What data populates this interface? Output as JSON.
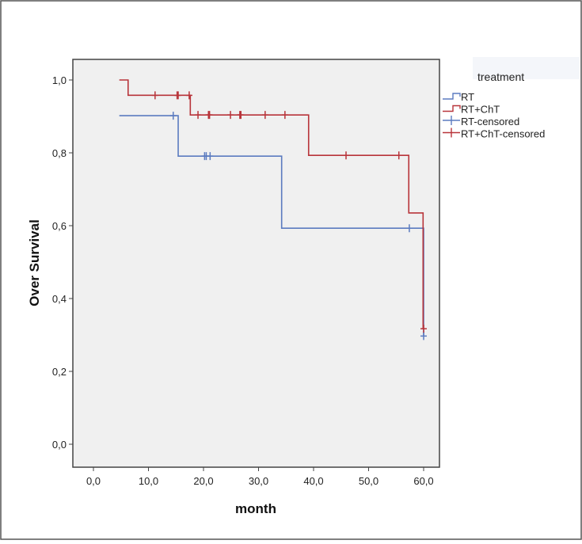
{
  "chart_data": {
    "type": "line",
    "subtype": "kaplan-meier step",
    "title": "",
    "xlabel": "month",
    "ylabel": "Over Survival",
    "xlim": [
      -3,
      63
    ],
    "ylim": [
      -0.1,
      1.1
    ],
    "xticks": [
      "0,0",
      "10,0",
      "20,0",
      "30,0",
      "40,0",
      "50,0",
      "60,0"
    ],
    "xtick_values": [
      0,
      10,
      20,
      30,
      40,
      50,
      60
    ],
    "yticks": [
      "0,0",
      "0,2",
      "0,4",
      "0,6",
      "0,8",
      "1,0"
    ],
    "ytick_values": [
      0,
      0.2,
      0.4,
      0.6,
      0.8,
      1.0
    ],
    "grid": false,
    "background": "#f0f0f0",
    "legend": {
      "title": "treatment",
      "placement": "right",
      "entries": [
        {
          "label": "RT",
          "kind": "step",
          "color": "#5b7bc0"
        },
        {
          "label": "RT+ChT",
          "kind": "step",
          "color": "#b8343a"
        },
        {
          "label": "RT-censored",
          "kind": "censor",
          "color": "#5b7bc0"
        },
        {
          "label": "RT+ChT-censored",
          "kind": "censor",
          "color": "#b8343a"
        }
      ]
    },
    "series": [
      {
        "name": "RT",
        "color": "#5b7bc0",
        "steps": [
          [
            4.7,
            0.902
          ],
          [
            15.4,
            0.791
          ],
          [
            34.2,
            0.593
          ],
          [
            60.0,
            0.297
          ]
        ],
        "censored": [
          [
            14.5,
            0.902
          ],
          [
            20.2,
            0.791
          ],
          [
            20.5,
            0.791
          ],
          [
            21.2,
            0.791
          ],
          [
            57.4,
            0.593
          ],
          [
            60.0,
            0.297
          ]
        ]
      },
      {
        "name": "RT+ChT",
        "color": "#b8343a",
        "steps": [
          [
            4.7,
            1.0
          ],
          [
            6.3,
            0.958
          ],
          [
            17.6,
            0.904
          ],
          [
            39.1,
            0.793
          ],
          [
            57.3,
            0.635
          ],
          [
            59.9,
            0.317
          ]
        ],
        "censored": [
          [
            11.2,
            0.958
          ],
          [
            15.2,
            0.958
          ],
          [
            15.4,
            0.958
          ],
          [
            17.4,
            0.958
          ],
          [
            19.0,
            0.904
          ],
          [
            20.9,
            0.904
          ],
          [
            21.1,
            0.904
          ],
          [
            24.9,
            0.904
          ],
          [
            26.6,
            0.904
          ],
          [
            26.8,
            0.904
          ],
          [
            31.2,
            0.904
          ],
          [
            34.8,
            0.904
          ],
          [
            45.9,
            0.793
          ],
          [
            55.5,
            0.793
          ],
          [
            60.0,
            0.317
          ]
        ]
      }
    ]
  }
}
